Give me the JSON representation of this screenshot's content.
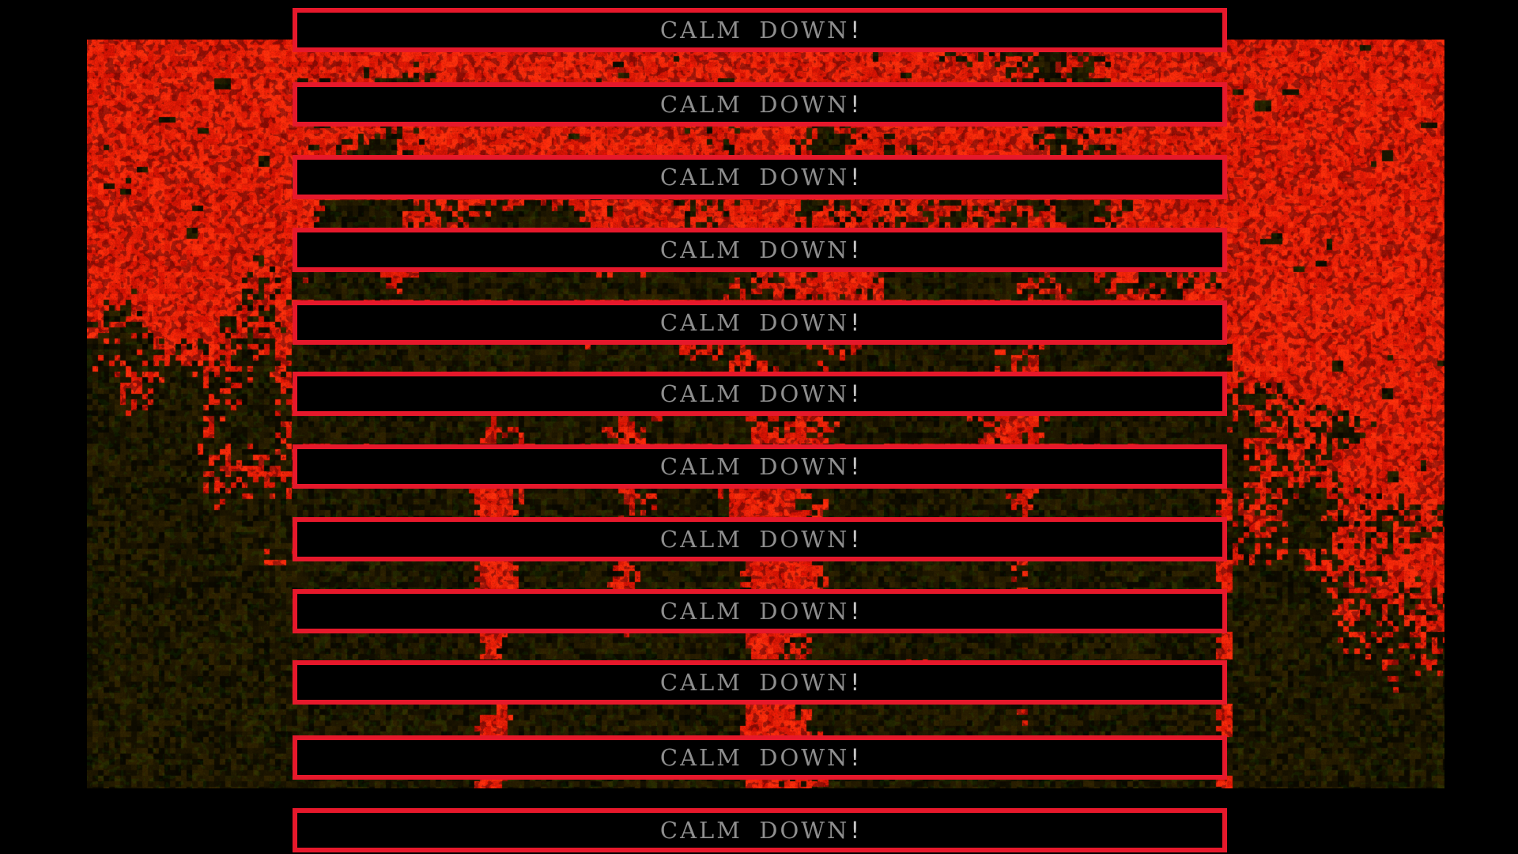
{
  "screen": {
    "background_color": "#000000"
  },
  "alert": {
    "text": "CALM DOWN",
    "suffix": "!",
    "count": 12,
    "border_color": "#e6182b",
    "box_background": "#000000",
    "text_color": "#8e8e8e",
    "suffix_color": "#c4c4c4"
  },
  "texture": {
    "name": "red-static-noise",
    "base_red": "#e8250a",
    "dark_red": "#9c1804",
    "speckle_black": "#161200"
  }
}
